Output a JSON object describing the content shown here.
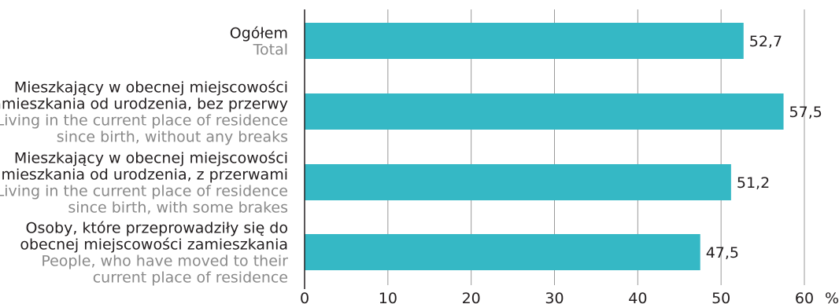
{
  "chart_data": {
    "type": "bar",
    "orientation": "horizontal",
    "categories": [
      {
        "lines_pl": [
          "Ogółem"
        ],
        "lines_en": [
          "Total"
        ]
      },
      {
        "lines_pl": [
          "Mieszkający w obecnej miejscowości",
          "zamieszkania od urodzenia, bez przerwy"
        ],
        "lines_en": [
          "Living in the current place of residence",
          "since birth, without any breaks"
        ]
      },
      {
        "lines_pl": [
          "Mieszkający w obecnej miejscowości",
          "zamieszkania od urodzenia, z przerwami"
        ],
        "lines_en": [
          "Living in the current place of residence",
          "since birth, with some brakes"
        ]
      },
      {
        "lines_pl": [
          "Osoby, które przeprowadziły się do",
          "obecnej miejscowości zamieszkania"
        ],
        "lines_en": [
          "People, who have moved to their",
          "current place of residence"
        ]
      }
    ],
    "values": [
      52.7,
      57.5,
      51.2,
      47.5
    ],
    "value_labels": [
      "52,7",
      "57,5",
      "51,2",
      "47,5"
    ],
    "x_ticks": [
      "0",
      "10",
      "20",
      "30",
      "40",
      "50",
      "60"
    ],
    "x_unit": "%",
    "xlim": [
      0,
      60
    ],
    "grid": true,
    "colors": {
      "bar": "#35b8c5",
      "grid": "#999999",
      "axis": "#231f20"
    }
  }
}
